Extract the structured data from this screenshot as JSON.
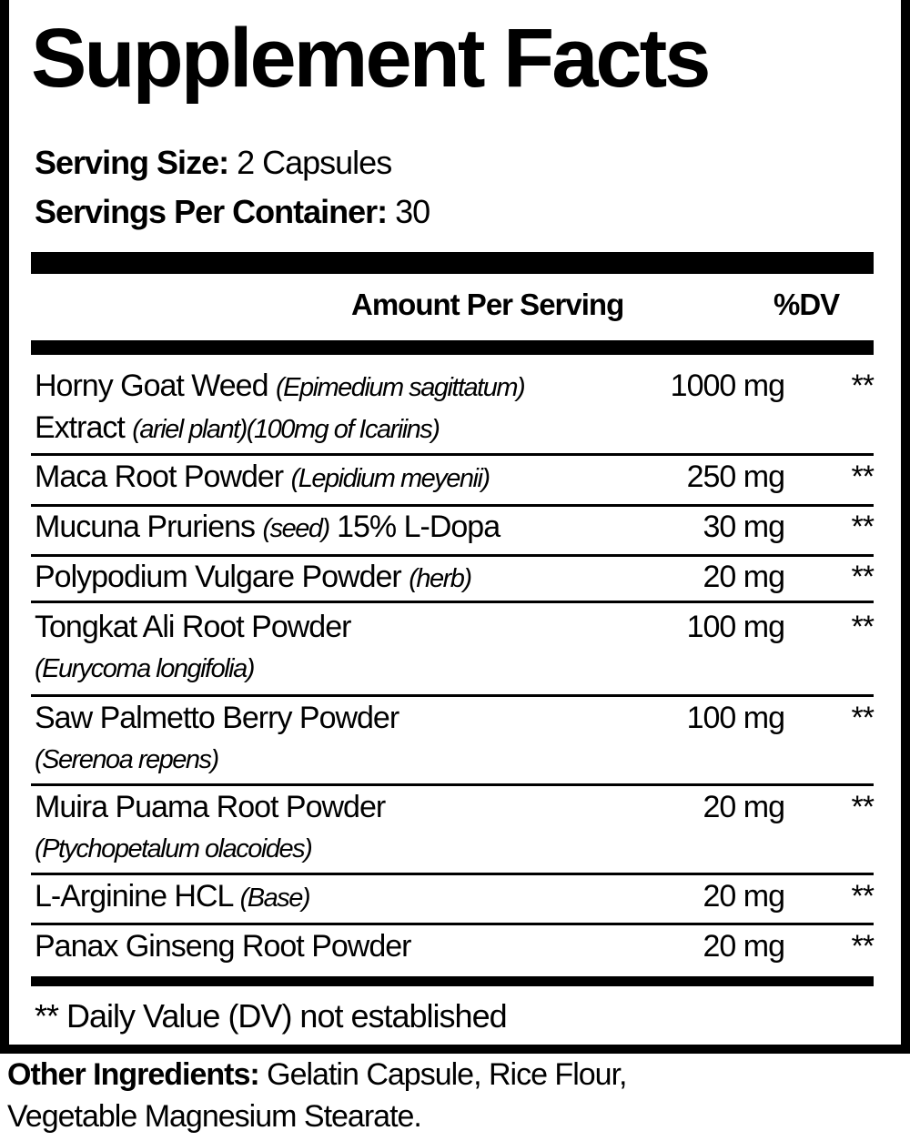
{
  "title": "Supplement Facts",
  "serving_size": {
    "label": "Serving Size:",
    "value": "2 Capsules"
  },
  "servings_per_container": {
    "label": "Servings Per Container:",
    "value": "30"
  },
  "header": {
    "amount": "Amount Per Serving",
    "dv": "%DV"
  },
  "ingredients": [
    {
      "name": "Horny Goat Weed ",
      "latin": "(Epimedium sagittatum)",
      "line2": "Extract ",
      "line2_italic": "(ariel plant)(100mg of Icariins)",
      "amount": "1000 mg",
      "dv": "**"
    },
    {
      "name": "Maca Root Powder ",
      "latin": "(Lepidium meyenii)",
      "amount": "250 mg",
      "dv": "**"
    },
    {
      "name": "Mucuna Pruriens ",
      "latin": "(seed)",
      "suffix": " 15% L-Dopa",
      "amount": "30 mg",
      "dv": "**"
    },
    {
      "name": "Polypodium Vulgare Powder ",
      "latin": "(herb)",
      "amount": "20 mg",
      "dv": "**"
    },
    {
      "name": "Tongkat Ali Root Powder",
      "line2_italic": "(Eurycoma longifolia)",
      "amount": "100 mg",
      "dv": "**"
    },
    {
      "name": "Saw Palmetto Berry Powder",
      "line2_italic": "(Serenoa repens)",
      "amount": "100 mg",
      "dv": "**"
    },
    {
      "name": "Muira Puama Root Powder",
      "line2_italic": "(Ptychopetalum olacoides)",
      "amount": "20 mg",
      "dv": "**"
    },
    {
      "name": "L-Arginine HCL ",
      "latin": "(Base)",
      "amount": "20 mg",
      "dv": "**"
    },
    {
      "name": "Panax Ginseng Root Powder",
      "amount": "20 mg",
      "dv": "**"
    }
  ],
  "footnote": "** Daily Value (DV) not established",
  "other_ingredients": {
    "label": "Other Ingredients:",
    "line1": " Gelatin Capsule, Rice Flour,",
    "line2": "Vegetable Magnesium Stearate."
  }
}
